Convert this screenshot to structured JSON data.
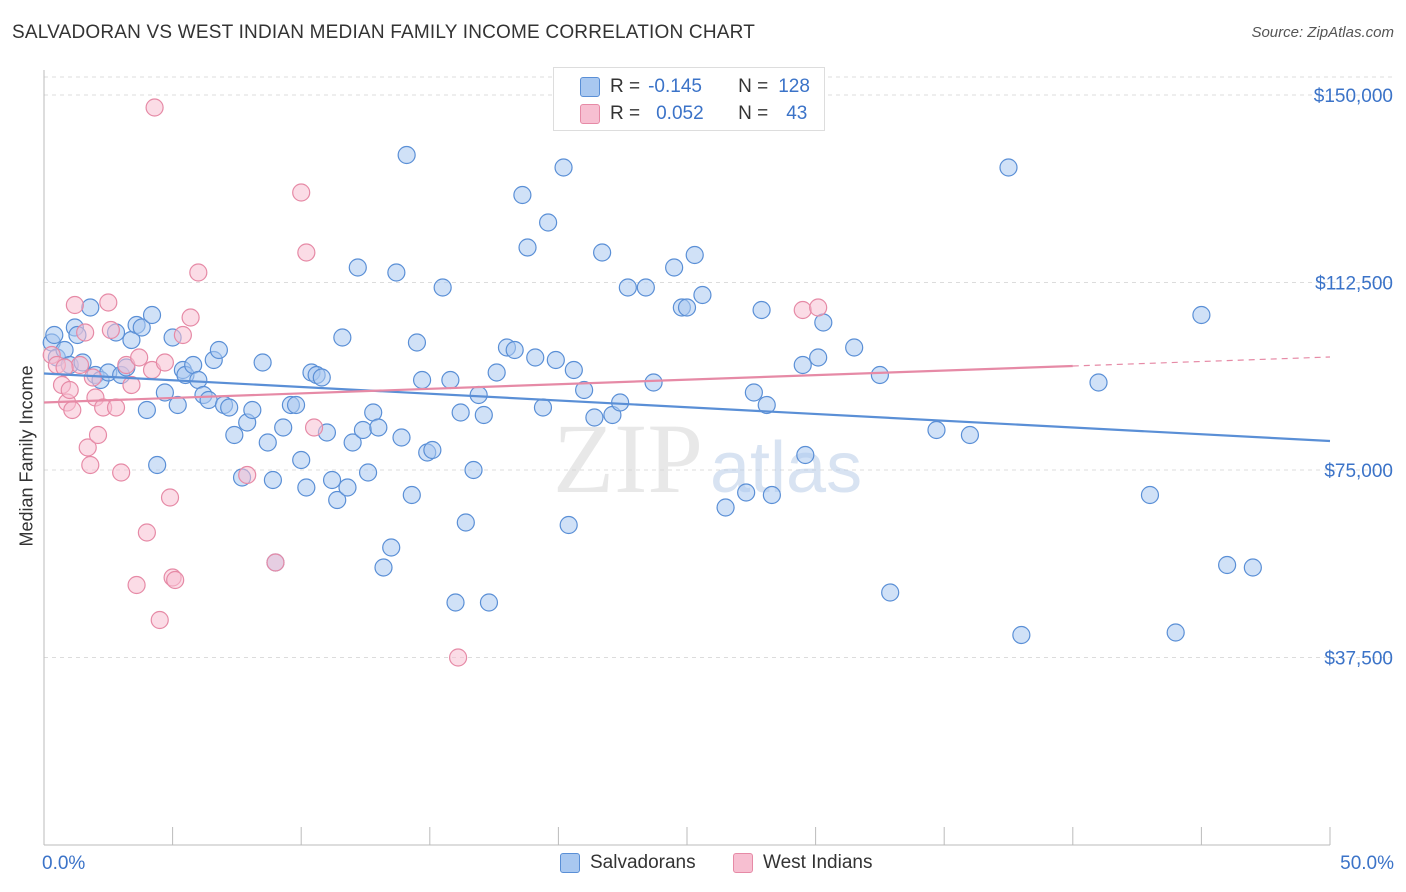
{
  "title": "SALVADORAN VS WEST INDIAN MEDIAN FAMILY INCOME CORRELATION CHART",
  "source": "Source: ZipAtlas.com",
  "watermark": {
    "zip": "ZIP",
    "atlas": "atlas"
  },
  "stats": {
    "r_label": "R =",
    "n_label": "N =",
    "rows": [
      {
        "r": "-0.145",
        "n": "128",
        "color": "#a9c8f0",
        "stroke": "#5a8fd6"
      },
      {
        "r": "0.052",
        "n": "43",
        "color": "#f7bfd1",
        "stroke": "#e68aa6"
      }
    ]
  },
  "legend": [
    {
      "label": "Salvadorans",
      "color": "#a9c8f0",
      "stroke": "#5a8fd6"
    },
    {
      "label": "West Indians",
      "color": "#f7bfd1",
      "stroke": "#e68aa6"
    }
  ],
  "chart_data": {
    "type": "scatter",
    "title": "SALVADORAN VS WEST INDIAN MEDIAN FAMILY INCOME CORRELATION CHART",
    "xlabel": "",
    "ylabel": "Median Family Income",
    "xlim": [
      0,
      50
    ],
    "ylim": [
      0,
      155000
    ],
    "x_tick_labels": [
      "0.0%",
      "50.0%"
    ],
    "y_ticks": [
      37500,
      75000,
      112500,
      150000
    ],
    "y_tick_labels": [
      "$37,500",
      "$75,000",
      "$112,500",
      "$150,000"
    ],
    "grid": "horizontal dashed",
    "legend_position": "bottom-center",
    "series": [
      {
        "name": "Salvadorans",
        "color": "#5a8fd6",
        "fill": "#a9c8f0",
        "trend": {
          "x": [
            0,
            50
          ],
          "y": [
            94300,
            80800
          ]
        },
        "points": [
          [
            0.3,
            100500
          ],
          [
            0.5,
            97500
          ],
          [
            0.8,
            99000
          ],
          [
            1.0,
            96000
          ],
          [
            1.2,
            103500
          ],
          [
            1.3,
            102000
          ],
          [
            1.5,
            96500
          ],
          [
            1.8,
            107500
          ],
          [
            2.0,
            94000
          ],
          [
            2.2,
            93000
          ],
          [
            2.5,
            94500
          ],
          [
            2.8,
            102500
          ],
          [
            3.0,
            94000
          ],
          [
            3.2,
            95500
          ],
          [
            3.4,
            101000
          ],
          [
            3.6,
            104000
          ],
          [
            3.8,
            103500
          ],
          [
            4.0,
            87000
          ],
          [
            4.2,
            106000
          ],
          [
            4.4,
            76000
          ],
          [
            4.7,
            90500
          ],
          [
            5.0,
            101500
          ],
          [
            5.2,
            88000
          ],
          [
            5.4,
            95000
          ],
          [
            5.5,
            94000
          ],
          [
            5.8,
            96000
          ],
          [
            6.0,
            93000
          ],
          [
            6.2,
            90000
          ],
          [
            6.4,
            89000
          ],
          [
            6.6,
            97000
          ],
          [
            6.8,
            99000
          ],
          [
            7.0,
            88000
          ],
          [
            7.2,
            87500
          ],
          [
            7.4,
            82000
          ],
          [
            7.7,
            73500
          ],
          [
            7.9,
            84500
          ],
          [
            8.1,
            87000
          ],
          [
            8.5,
            96500
          ],
          [
            8.7,
            80500
          ],
          [
            8.9,
            73000
          ],
          [
            9.0,
            56500
          ],
          [
            9.3,
            83500
          ],
          [
            9.6,
            88000
          ],
          [
            9.8,
            88000
          ],
          [
            10.0,
            77000
          ],
          [
            10.2,
            71500
          ],
          [
            10.4,
            94500
          ],
          [
            10.6,
            94000
          ],
          [
            10.8,
            93500
          ],
          [
            11.0,
            82500
          ],
          [
            11.2,
            73000
          ],
          [
            11.4,
            69000
          ],
          [
            11.6,
            101500
          ],
          [
            11.8,
            71500
          ],
          [
            12.0,
            80500
          ],
          [
            12.2,
            115500
          ],
          [
            12.4,
            83000
          ],
          [
            12.6,
            74500
          ],
          [
            12.8,
            86500
          ],
          [
            13.0,
            83500
          ],
          [
            13.2,
            55500
          ],
          [
            13.5,
            59500
          ],
          [
            13.7,
            114500
          ],
          [
            13.9,
            81500
          ],
          [
            14.1,
            138000
          ],
          [
            14.3,
            70000
          ],
          [
            14.5,
            100500
          ],
          [
            14.7,
            93000
          ],
          [
            14.9,
            78500
          ],
          [
            15.1,
            79000
          ],
          [
            15.5,
            111500
          ],
          [
            15.8,
            93000
          ],
          [
            16.0,
            48500
          ],
          [
            16.2,
            86500
          ],
          [
            16.4,
            64500
          ],
          [
            16.7,
            75000
          ],
          [
            16.9,
            90000
          ],
          [
            17.1,
            86000
          ],
          [
            17.3,
            48500
          ],
          [
            17.6,
            94500
          ],
          [
            18.0,
            99500
          ],
          [
            18.3,
            99000
          ],
          [
            18.6,
            130000
          ],
          [
            18.8,
            119500
          ],
          [
            19.1,
            97500
          ],
          [
            19.4,
            87500
          ],
          [
            19.6,
            124500
          ],
          [
            19.9,
            97000
          ],
          [
            20.2,
            135500
          ],
          [
            20.4,
            64000
          ],
          [
            20.6,
            95000
          ],
          [
            21.0,
            91000
          ],
          [
            21.4,
            85500
          ],
          [
            21.7,
            118500
          ],
          [
            22.1,
            86000
          ],
          [
            22.4,
            88500
          ],
          [
            22.7,
            111500
          ],
          [
            23.4,
            111500
          ],
          [
            23.7,
            92500
          ],
          [
            24.5,
            115500
          ],
          [
            24.8,
            107500
          ],
          [
            25.0,
            107500
          ],
          [
            25.3,
            118000
          ],
          [
            25.6,
            110000
          ],
          [
            26.5,
            67500
          ],
          [
            27.3,
            70500
          ],
          [
            27.6,
            90500
          ],
          [
            27.9,
            107000
          ],
          [
            28.1,
            88000
          ],
          [
            28.3,
            70000
          ],
          [
            29.5,
            96000
          ],
          [
            29.6,
            78000
          ],
          [
            30.1,
            97500
          ],
          [
            30.3,
            104500
          ],
          [
            31.5,
            99500
          ],
          [
            32.5,
            94000
          ],
          [
            32.9,
            50500
          ],
          [
            34.7,
            83000
          ],
          [
            36.0,
            82000
          ],
          [
            37.5,
            135500
          ],
          [
            38.0,
            42000
          ],
          [
            41.0,
            92500
          ],
          [
            43.0,
            70000
          ],
          [
            44.0,
            42500
          ],
          [
            45.0,
            106000
          ],
          [
            46.0,
            56000
          ],
          [
            47.0,
            55500
          ],
          [
            0.4,
            102000
          ]
        ]
      },
      {
        "name": "West Indians",
        "color": "#e68aa6",
        "fill": "#f7bfd1",
        "trend": {
          "x": [
            0,
            40
          ],
          "y": [
            88500,
            95800
          ]
        },
        "trend_extension": {
          "x": [
            40,
            50
          ],
          "y": [
            95800,
            97600
          ]
        },
        "points": [
          [
            0.3,
            98000
          ],
          [
            0.5,
            96000
          ],
          [
            0.7,
            92000
          ],
          [
            0.9,
            88500
          ],
          [
            1.1,
            87000
          ],
          [
            1.2,
            108000
          ],
          [
            1.4,
            96000
          ],
          [
            1.6,
            102500
          ],
          [
            1.7,
            79500
          ],
          [
            1.8,
            76000
          ],
          [
            1.9,
            93500
          ],
          [
            2.0,
            89500
          ],
          [
            2.1,
            82000
          ],
          [
            2.3,
            87500
          ],
          [
            2.5,
            108500
          ],
          [
            2.6,
            103000
          ],
          [
            2.8,
            87500
          ],
          [
            3.0,
            74500
          ],
          [
            3.2,
            96000
          ],
          [
            3.4,
            92000
          ],
          [
            3.6,
            52000
          ],
          [
            3.7,
            97500
          ],
          [
            4.0,
            62500
          ],
          [
            4.2,
            95000
          ],
          [
            4.3,
            147500
          ],
          [
            4.5,
            45000
          ],
          [
            4.7,
            96500
          ],
          [
            4.9,
            69500
          ],
          [
            5.0,
            53500
          ],
          [
            5.1,
            53000
          ],
          [
            5.4,
            102000
          ],
          [
            5.7,
            105500
          ],
          [
            6.0,
            114500
          ],
          [
            7.9,
            74000
          ],
          [
            9.0,
            56500
          ],
          [
            10.0,
            130500
          ],
          [
            10.2,
            118500
          ],
          [
            10.5,
            83500
          ],
          [
            16.1,
            37500
          ],
          [
            1.0,
            91000
          ],
          [
            0.8,
            95500
          ],
          [
            29.5,
            107000
          ],
          [
            30.1,
            107500
          ]
        ]
      }
    ]
  }
}
